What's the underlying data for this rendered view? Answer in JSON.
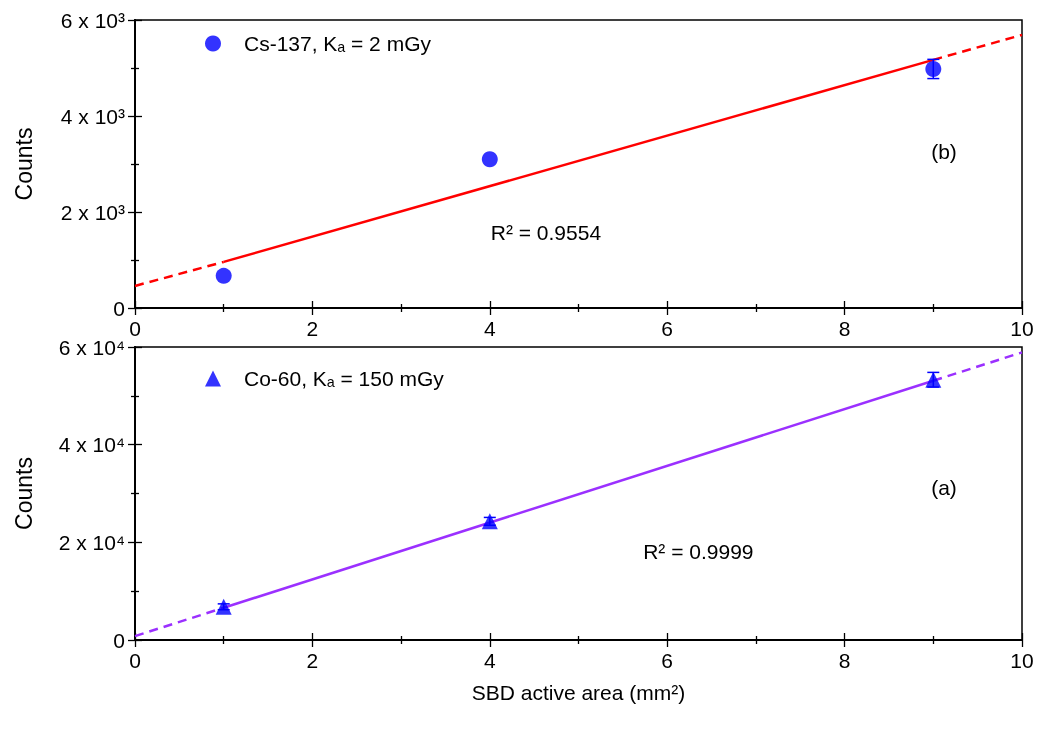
{
  "chart_data": [
    {
      "type": "scatter",
      "ylabel": "Counts",
      "xlim": [
        0,
        10
      ],
      "xticks": [
        0,
        2,
        4,
        6,
        8,
        10
      ],
      "ylim": [
        0,
        6000
      ],
      "yticks": [
        0,
        {
          "value": 2000,
          "label": "2 x 10³"
        },
        {
          "value": 4000,
          "label": "4 x 10³"
        },
        {
          "value": 6000,
          "label": "6 x 10³"
        }
      ],
      "series": [
        {
          "name": "Cs-137, Kₐ = 2 mGy",
          "color": "#0000ff",
          "x": [
            1,
            4,
            9
          ],
          "values": [
            670,
            3100,
            4980
          ],
          "errors": [
            null,
            null,
            200
          ],
          "marker": "circle"
        },
        {
          "type": "line",
          "color": "#ff0000",
          "x": [
            0,
            1
          ],
          "values": [
            460,
            960
          ],
          "line_style": "dashed"
        },
        {
          "type": "line",
          "color": "#ff0000",
          "x": [
            1,
            9
          ],
          "values": [
            960,
            5170
          ],
          "line_style": "solid"
        },
        {
          "type": "line",
          "color": "#ff0000",
          "x": [
            9,
            10
          ],
          "values": [
            5170,
            5690
          ],
          "line_style": "dashed"
        }
      ],
      "annotations": [
        "R² = 0.9554",
        "(b)"
      ],
      "legend": "top left",
      "grid": false
    },
    {
      "type": "scatter",
      "xlabel": "SBD active area (mm²)",
      "ylabel": "Counts",
      "xlim": [
        0,
        10
      ],
      "xticks": [
        0,
        2,
        4,
        6,
        8,
        10
      ],
      "ylim": [
        0,
        60000
      ],
      "yticks": [
        0,
        {
          "value": 20000,
          "label": "2 x 10⁴"
        },
        {
          "value": 40000,
          "label": "4 x 10⁴"
        },
        {
          "value": 60000,
          "label": "6 x 10⁴"
        }
      ],
      "series": [
        {
          "name": "Co-60, Kₐ = 150 mGy",
          "color": "#0000ff",
          "x": [
            1,
            4,
            9
          ],
          "values": [
            6800,
            24300,
            53300
          ],
          "errors": [
            600,
            800,
            1500
          ],
          "marker": "triangle"
        },
        {
          "type": "line",
          "color": "#9b30ff",
          "x": [
            0,
            1
          ],
          "values": [
            800,
            6600
          ],
          "line_style": "dashed"
        },
        {
          "type": "line",
          "color": "#9b30ff",
          "x": [
            1,
            9
          ],
          "values": [
            6600,
            53100
          ],
          "line_style": "solid"
        },
        {
          "type": "line",
          "color": "#9b30ff",
          "x": [
            9,
            10
          ],
          "values": [
            53100,
            58900
          ],
          "line_style": "dashed"
        }
      ],
      "annotations": [
        "R² = 0.9999",
        "(a)"
      ],
      "legend": "top left",
      "grid": false
    }
  ]
}
